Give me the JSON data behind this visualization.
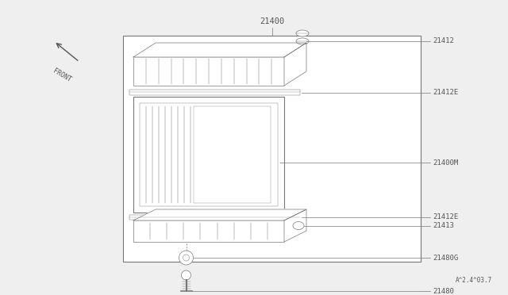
{
  "bg_color": "#efefef",
  "border_color": "#777777",
  "line_color": "#777777",
  "text_color": "#555555",
  "title_label": "21400",
  "front_label": "FRONT",
  "footer_label": "A^2.4^03.7",
  "parts": [
    {
      "id": "21412",
      "label": "21412"
    },
    {
      "id": "21412E1",
      "label": "21412E"
    },
    {
      "id": "21400M",
      "label": "21400M"
    },
    {
      "id": "21412E2",
      "label": "21412E"
    },
    {
      "id": "21413",
      "label": "21413"
    },
    {
      "id": "21480G",
      "label": "21480G"
    },
    {
      "id": "21480",
      "label": "21480"
    }
  ],
  "font_size": 6.5,
  "lw_main": 0.8,
  "lw_thin": 0.5
}
